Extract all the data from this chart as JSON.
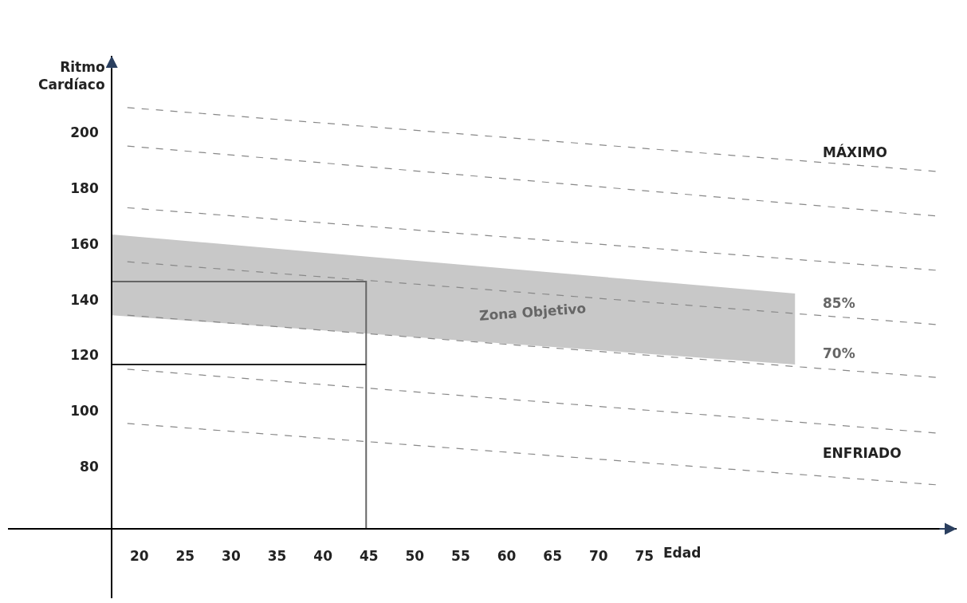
{
  "chart_data": {
    "type": "line",
    "ylabel": "Ritmo Cardíaco",
    "xlabel": "Edad",
    "xlim": [
      5.7,
      109
    ],
    "ylim": [
      32.7,
      227.6
    ],
    "xticks": [
      20,
      25,
      30,
      35,
      40,
      45,
      50,
      55,
      60,
      65,
      70,
      75
    ],
    "yticks": [
      80,
      100,
      120,
      140,
      160,
      180,
      200
    ],
    "marker": "none",
    "series": [
      {
        "type": "line",
        "color": "#c8c8c8",
        "x": [
          17,
          91.4
        ],
        "values": [
          null,
          null
        ],
        "lower": [
          134.4,
          116.7
        ],
        "upper": [
          163.4,
          142.2
        ]
      },
      {
        "color": "#888888",
        "line_style": "dashed",
        "x": [
          18.7,
          107
        ],
        "values": [
          209,
          186
        ]
      },
      {
        "color": "#888888",
        "line_style": "dashed",
        "x": [
          18.7,
          107
        ],
        "values": [
          195.2,
          170
        ]
      },
      {
        "color": "#888888",
        "line_style": "dashed",
        "x": [
          18.7,
          107
        ],
        "values": [
          173,
          150.5
        ]
      },
      {
        "color": "#888888",
        "line_style": "dashed",
        "x": [
          18.7,
          107
        ],
        "values": [
          153.6,
          131
        ]
      },
      {
        "color": "#888888",
        "line_style": "dashed",
        "x": [
          18.7,
          107
        ],
        "values": [
          134.4,
          112
        ]
      },
      {
        "color": "#888888",
        "line_style": "dashed",
        "x": [
          18.7,
          107
        ],
        "values": [
          115,
          92
        ]
      },
      {
        "color": "#888888",
        "line_style": "dashed",
        "x": [
          18.7,
          107
        ],
        "values": [
          95.5,
          73.4
        ]
      },
      {
        "color": "#666666",
        "line_style": "solid",
        "x": [
          17,
          44.7,
          44.7
        ],
        "values": [
          146.5,
          146.5,
          57.6
        ]
      },
      {
        "color": "#222222",
        "line_style": "solid",
        "x": [
          17,
          44.7
        ],
        "values": [
          116.7,
          116.7
        ]
      }
    ],
    "annotations": [
      "MÁXIMO",
      "85%",
      "70%",
      "ENFRIADO",
      "Zona Objetivo"
    ]
  }
}
